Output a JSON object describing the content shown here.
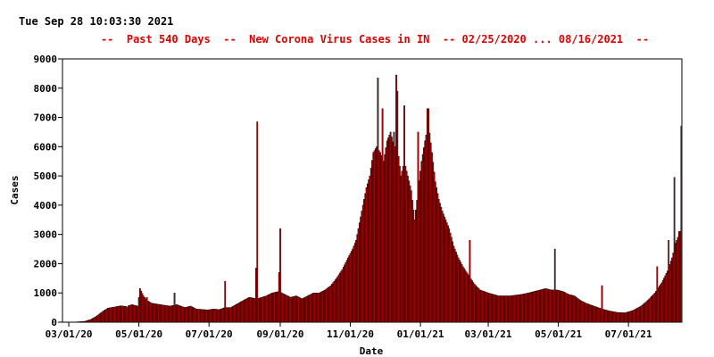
{
  "timestamp": "Tue Sep 28 10:03:30 2021",
  "chart_data": {
    "type": "bar",
    "title": "--  Past 540 Days  --  New Corona Virus Cases in IN  -- 02/25/2020 ... 08/16/2021  --",
    "xlabel": "Date",
    "ylabel": "Cases",
    "ylim": [
      0,
      9000
    ],
    "yticks": [
      "0",
      "1000",
      "2000",
      "3000",
      "4000",
      "5000",
      "6000",
      "7000",
      "8000",
      "9000"
    ],
    "xticks": [
      {
        "label": "03/01/20",
        "date": "2020-03-01"
      },
      {
        "label": "05/01/20",
        "date": "2020-05-01"
      },
      {
        "label": "07/01/20",
        "date": "2020-07-01"
      },
      {
        "label": "09/01/20",
        "date": "2020-09-01"
      },
      {
        "label": "11/01/20",
        "date": "2020-11-01"
      },
      {
        "label": "01/01/21",
        "date": "2021-01-01"
      },
      {
        "label": "03/01/21",
        "date": "2021-03-01"
      },
      {
        "label": "05/01/21",
        "date": "2021-05-01"
      },
      {
        "label": "07/01/21",
        "date": "2021-07-01"
      }
    ],
    "x_start": "2020-02-25",
    "x_end": "2021-08-16",
    "grid": false,
    "colors": {
      "bar_fill": "#c80000",
      "bar_outline": "#000000",
      "title": "#e00000"
    },
    "daily": [
      [
        "2020-03-01",
        0
      ],
      [
        "2020-03-08",
        10
      ],
      [
        "2020-03-15",
        30
      ],
      [
        "2020-03-20",
        90
      ],
      [
        "2020-03-25",
        200
      ],
      [
        "2020-03-31",
        380
      ],
      [
        "2020-04-04",
        480
      ],
      [
        "2020-04-10",
        520
      ],
      [
        "2020-04-15",
        560
      ],
      [
        "2020-04-20",
        540
      ],
      [
        "2020-04-25",
        600
      ],
      [
        "2020-04-30",
        550
      ],
      [
        "2020-05-02",
        1150
      ],
      [
        "2020-05-05",
        900
      ],
      [
        "2020-05-08",
        750
      ],
      [
        "2020-05-12",
        650
      ],
      [
        "2020-05-20",
        600
      ],
      [
        "2020-05-28",
        550
      ],
      [
        "2020-06-03",
        600
      ],
      [
        "2020-06-10",
        500
      ],
      [
        "2020-06-15",
        550
      ],
      [
        "2020-06-20",
        450
      ],
      [
        "2020-06-30",
        420
      ],
      [
        "2020-07-05",
        450
      ],
      [
        "2020-07-10",
        430
      ],
      [
        "2020-07-15",
        500
      ],
      [
        "2020-07-20",
        500
      ],
      [
        "2020-07-28",
        680
      ],
      [
        "2020-08-05",
        850
      ],
      [
        "2020-08-12",
        800
      ],
      [
        "2020-08-20",
        900
      ],
      [
        "2020-08-25",
        1000
      ],
      [
        "2020-08-31",
        1050
      ],
      [
        "2020-09-05",
        950
      ],
      [
        "2020-09-10",
        850
      ],
      [
        "2020-09-15",
        900
      ],
      [
        "2020-09-20",
        800
      ],
      [
        "2020-09-25",
        900
      ],
      [
        "2020-09-30",
        1000
      ],
      [
        "2020-10-05",
        1000
      ],
      [
        "2020-10-10",
        1100
      ],
      [
        "2020-10-15",
        1250
      ],
      [
        "2020-10-20",
        1500
      ],
      [
        "2020-10-25",
        1800
      ],
      [
        "2020-10-30",
        2200
      ],
      [
        "2020-11-03",
        2500
      ],
      [
        "2020-11-06",
        2800
      ],
      [
        "2020-11-09",
        3400
      ],
      [
        "2020-11-12",
        4000
      ],
      [
        "2020-11-15",
        4600
      ],
      [
        "2020-11-18",
        5000
      ],
      [
        "2020-11-21",
        5800
      ],
      [
        "2020-11-24",
        6000
      ],
      [
        "2020-11-27",
        5800
      ],
      [
        "2020-11-30",
        5500
      ],
      [
        "2020-12-03",
        6200
      ],
      [
        "2020-12-06",
        6500
      ],
      [
        "2020-12-09",
        6000
      ],
      [
        "2020-12-12",
        6000
      ],
      [
        "2020-12-15",
        5000
      ],
      [
        "2020-12-18",
        5500
      ],
      [
        "2020-12-21",
        5000
      ],
      [
        "2020-12-24",
        4500
      ],
      [
        "2020-12-27",
        3500
      ],
      [
        "2020-12-30",
        4500
      ],
      [
        "2021-01-02",
        5500
      ],
      [
        "2021-01-05",
        6200
      ],
      [
        "2021-01-08",
        6800
      ],
      [
        "2021-01-11",
        5800
      ],
      [
        "2021-01-14",
        4800
      ],
      [
        "2021-01-17",
        4200
      ],
      [
        "2021-01-20",
        3800
      ],
      [
        "2021-01-23",
        3500
      ],
      [
        "2021-01-26",
        3200
      ],
      [
        "2021-01-30",
        2600
      ],
      [
        "2021-02-03",
        2200
      ],
      [
        "2021-02-07",
        1900
      ],
      [
        "2021-02-12",
        1600
      ],
      [
        "2021-02-17",
        1300
      ],
      [
        "2021-02-22",
        1100
      ],
      [
        "2021-03-01",
        1000
      ],
      [
        "2021-03-10",
        900
      ],
      [
        "2021-03-20",
        900
      ],
      [
        "2021-03-30",
        950
      ],
      [
        "2021-04-05",
        1000
      ],
      [
        "2021-04-10",
        1050
      ],
      [
        "2021-04-15",
        1100
      ],
      [
        "2021-04-20",
        1150
      ],
      [
        "2021-04-25",
        1100
      ],
      [
        "2021-04-30",
        1100
      ],
      [
        "2021-05-05",
        1050
      ],
      [
        "2021-05-10",
        950
      ],
      [
        "2021-05-15",
        900
      ],
      [
        "2021-05-20",
        750
      ],
      [
        "2021-05-25",
        650
      ],
      [
        "2021-06-01",
        550
      ],
      [
        "2021-06-08",
        450
      ],
      [
        "2021-06-15",
        380
      ],
      [
        "2021-06-22",
        330
      ],
      [
        "2021-06-28",
        320
      ],
      [
        "2021-07-05",
        400
      ],
      [
        "2021-07-12",
        550
      ],
      [
        "2021-07-18",
        750
      ],
      [
        "2021-07-24",
        1000
      ],
      [
        "2021-07-30",
        1350
      ],
      [
        "2021-08-04",
        1750
      ],
      [
        "2021-08-08",
        2200
      ],
      [
        "2021-08-11",
        2700
      ],
      [
        "2021-08-14",
        3000
      ],
      [
        "2021-08-16",
        3200
      ]
    ],
    "spikes": [
      {
        "date": "2020-04-21",
        "value": 500
      },
      {
        "date": "2020-05-08",
        "value": 850
      },
      {
        "date": "2020-06-01",
        "value": 1000
      },
      {
        "date": "2020-07-15",
        "value": 1400
      },
      {
        "date": "2020-08-11",
        "value": 1850
      },
      {
        "date": "2020-08-12",
        "value": 6850
      },
      {
        "date": "2020-08-31",
        "value": 1700
      },
      {
        "date": "2020-09-01",
        "value": 3200
      },
      {
        "date": "2020-11-25",
        "value": 8350
      },
      {
        "date": "2020-11-29",
        "value": 7300
      },
      {
        "date": "2020-12-05",
        "value": 6400
      },
      {
        "date": "2020-12-09",
        "value": 6500
      },
      {
        "date": "2020-12-11",
        "value": 8450
      },
      {
        "date": "2020-12-12",
        "value": 7900
      },
      {
        "date": "2020-12-18",
        "value": 7400
      },
      {
        "date": "2020-12-30",
        "value": 6500
      },
      {
        "date": "2021-01-07",
        "value": 7300
      },
      {
        "date": "2021-01-08",
        "value": 7300
      },
      {
        "date": "2021-01-22",
        "value": 3600
      },
      {
        "date": "2021-02-13",
        "value": 2800
      },
      {
        "date": "2021-04-28",
        "value": 2500
      },
      {
        "date": "2021-06-08",
        "value": 1250
      },
      {
        "date": "2021-07-26",
        "value": 1900
      },
      {
        "date": "2021-08-05",
        "value": 2800
      },
      {
        "date": "2021-08-10",
        "value": 4950
      },
      {
        "date": "2021-08-14",
        "value": 3100
      },
      {
        "date": "2021-08-16",
        "value": 6700
      }
    ]
  }
}
